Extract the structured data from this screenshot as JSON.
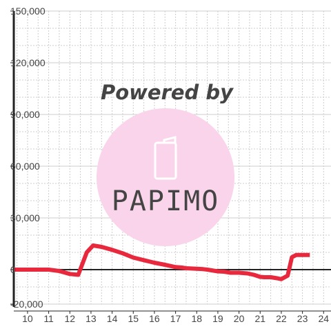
{
  "chart_data": {
    "type": "line",
    "title": "",
    "xlabel": "",
    "ylabel": "",
    "x_ticks": [
      10,
      11,
      12,
      13,
      14,
      15,
      16,
      17,
      18,
      19,
      20,
      21,
      22,
      23,
      24
    ],
    "x_minor_step": 0.5,
    "y_ticks": [
      150000,
      120000,
      90000,
      60000,
      30000,
      0,
      -20000
    ],
    "y_tick_labels": [
      "150,000",
      "120,000",
      "90,000",
      "60,000",
      "30,000",
      "0",
      "-20,000"
    ],
    "y_minor_step": 10000,
    "xlim": [
      9.35,
      24.35
    ],
    "ylim": [
      -20000,
      150000
    ],
    "grid": true,
    "legend": "none",
    "series": [
      {
        "color": "#e8283c",
        "points": [
          [
            9.35,
            0
          ],
          [
            10,
            0
          ],
          [
            11,
            0
          ],
          [
            11.5,
            -800
          ],
          [
            12,
            -2500
          ],
          [
            12.4,
            -3000
          ],
          [
            12.8,
            10000
          ],
          [
            13.1,
            14000
          ],
          [
            13.5,
            13200
          ],
          [
            14,
            11500
          ],
          [
            14.5,
            9500
          ],
          [
            15,
            7000
          ],
          [
            15.5,
            5500
          ],
          [
            16,
            4000
          ],
          [
            16.5,
            2800
          ],
          [
            17,
            1500
          ],
          [
            17.3,
            1200
          ],
          [
            17.5,
            800
          ],
          [
            18,
            500
          ],
          [
            18.3,
            300
          ],
          [
            18.5,
            0
          ],
          [
            19,
            -1000
          ],
          [
            19.3,
            -1200
          ],
          [
            19.6,
            -1800
          ],
          [
            20,
            -1800
          ],
          [
            20.4,
            -2200
          ],
          [
            20.7,
            -3000
          ],
          [
            21,
            -4200
          ],
          [
            21.2,
            -4400
          ],
          [
            21.5,
            -4400
          ],
          [
            21.8,
            -5000
          ],
          [
            22,
            -5500
          ],
          [
            22.3,
            -3500
          ],
          [
            22.5,
            7200
          ],
          [
            22.7,
            8500
          ],
          [
            23.35,
            8500
          ]
        ]
      }
    ]
  },
  "watermark": {
    "text": "Powered by",
    "logo_text": "PAPIMO",
    "color": "#fad4ea",
    "logo_text_color": "#ffffff"
  },
  "colors": {
    "axis": "#222222",
    "grid_major": "#cccccc",
    "grid_minor": "#cccccc"
  }
}
